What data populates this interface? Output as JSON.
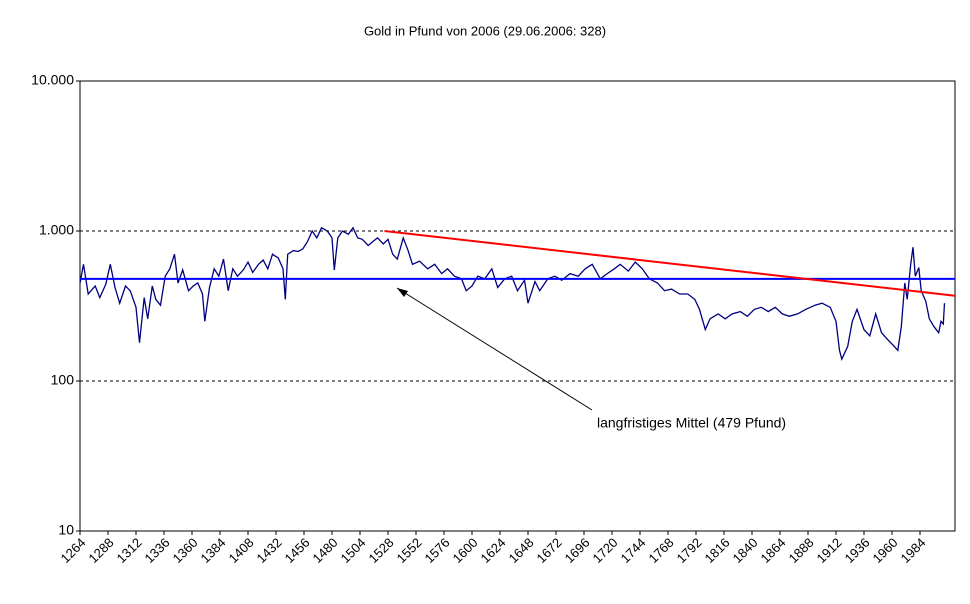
{
  "chart_data": {
    "type": "line",
    "title": "Gold in Pfund von 2006 (29.06.2006: 328)",
    "log_y": true,
    "grid": true,
    "xlim": [
      1264,
      2014
    ],
    "ylim": [
      10,
      10000
    ],
    "xticks": [
      1264,
      1288,
      1312,
      1336,
      1360,
      1384,
      1408,
      1432,
      1456,
      1480,
      1504,
      1528,
      1552,
      1576,
      1600,
      1624,
      1648,
      1672,
      1696,
      1720,
      1744,
      1768,
      1792,
      1816,
      1840,
      1864,
      1888,
      1912,
      1936,
      1960,
      1984
    ],
    "yticks": [
      10,
      100,
      {
        "value": 1000,
        "label": "1.000"
      },
      {
        "value": 10000,
        "label": "10.000"
      }
    ],
    "annotation": "langfristiges Mittel (479 Pfund)",
    "series": [
      {
        "color": "#000080",
        "x": [
          1264,
          1267,
          1271,
          1277,
          1281,
          1286,
          1290,
          1294,
          1298,
          1303,
          1307,
          1312,
          1315,
          1319,
          1322,
          1326,
          1329,
          1333,
          1337,
          1341,
          1345,
          1348,
          1352,
          1357,
          1361,
          1365,
          1369,
          1371,
          1375,
          1379,
          1383,
          1387,
          1391,
          1395,
          1399,
          1404,
          1408,
          1412,
          1417,
          1421,
          1425,
          1429,
          1434,
          1438,
          1440,
          1442,
          1447,
          1451,
          1455,
          1459,
          1463,
          1467,
          1471,
          1476,
          1480,
          1482,
          1485,
          1489,
          1494,
          1498,
          1502,
          1506,
          1511,
          1515,
          1519,
          1524,
          1528,
          1532,
          1536,
          1541,
          1545,
          1549,
          1555,
          1562,
          1568,
          1574,
          1579,
          1585,
          1591,
          1595,
          1600,
          1605,
          1611,
          1617,
          1622,
          1628,
          1634,
          1639,
          1645,
          1648,
          1654,
          1658,
          1665,
          1671,
          1677,
          1684,
          1691,
          1697,
          1703,
          1710,
          1716,
          1722,
          1727,
          1734,
          1740,
          1746,
          1752,
          1759,
          1765,
          1771,
          1778,
          1785,
          1791,
          1795,
          1800,
          1804,
          1811,
          1817,
          1823,
          1830,
          1836,
          1842,
          1848,
          1854,
          1860,
          1866,
          1872,
          1879,
          1886,
          1894,
          1900,
          1907,
          1912,
          1915,
          1917,
          1922,
          1926,
          1930,
          1936,
          1941,
          1946,
          1951,
          1956,
          1962,
          1965,
          1968,
          1971,
          1973,
          1976,
          1978,
          1980,
          1983,
          1985,
          1989,
          1992,
          1996,
          2000,
          2002,
          2004,
          2005
        ],
        "values": [
          450,
          600,
          380,
          430,
          360,
          440,
          600,
          420,
          330,
          430,
          400,
          310,
          180,
          360,
          260,
          430,
          350,
          320,
          500,
          560,
          700,
          450,
          550,
          400,
          430,
          450,
          380,
          250,
          420,
          560,
          500,
          650,
          400,
          560,
          500,
          550,
          620,
          530,
          600,
          640,
          560,
          700,
          660,
          560,
          350,
          700,
          740,
          730,
          760,
          850,
          1000,
          900,
          1050,
          1000,
          900,
          550,
          900,
          1000,
          950,
          1050,
          900,
          880,
          800,
          850,
          900,
          820,
          880,
          700,
          650,
          900,
          750,
          600,
          630,
          560,
          600,
          520,
          560,
          500,
          480,
          400,
          430,
          500,
          480,
          560,
          420,
          480,
          500,
          400,
          470,
          330,
          460,
          400,
          480,
          500,
          470,
          520,
          500,
          560,
          600,
          480,
          520,
          560,
          600,
          540,
          620,
          560,
          480,
          450,
          400,
          410,
          380,
          380,
          350,
          300,
          220,
          260,
          280,
          260,
          280,
          290,
          270,
          300,
          310,
          290,
          310,
          280,
          270,
          280,
          300,
          320,
          330,
          310,
          250,
          160,
          140,
          170,
          250,
          300,
          220,
          200,
          280,
          210,
          190,
          170,
          160,
          230,
          450,
          350,
          600,
          780,
          500,
          570,
          400,
          340,
          260,
          230,
          210,
          250,
          240,
          330
        ]
      },
      {
        "color": "#0000ff",
        "x": [
          1264,
          2014
        ],
        "values": [
          479,
          479
        ]
      },
      {
        "color": "#ff0000",
        "x": [
          1525,
          2014
        ],
        "values": [
          1000,
          370
        ]
      }
    ]
  }
}
